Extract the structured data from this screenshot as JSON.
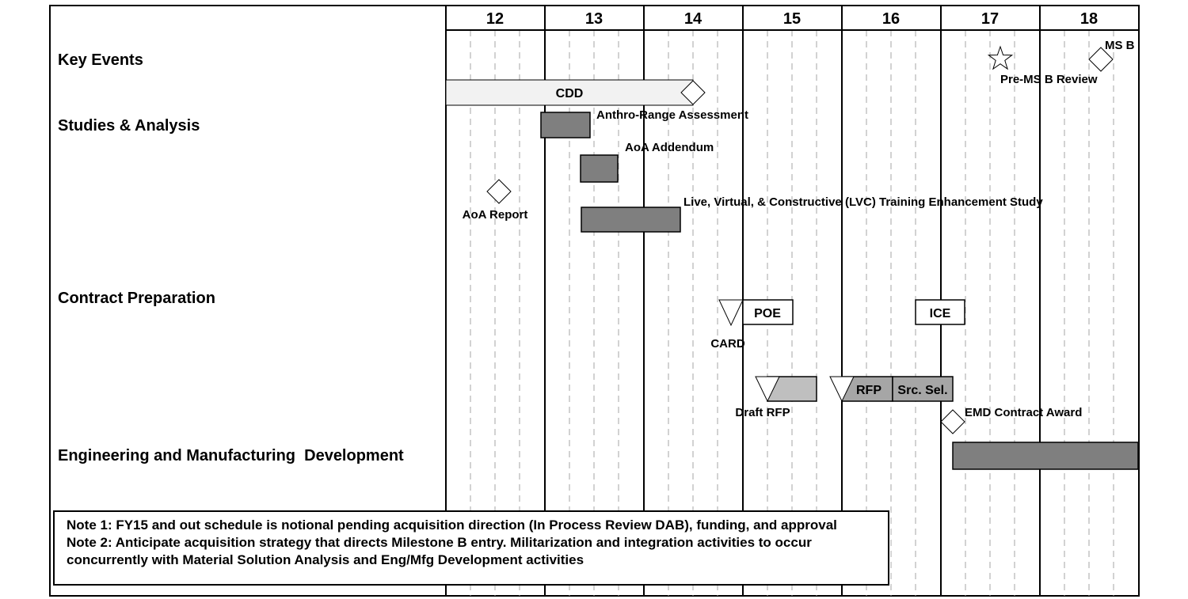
{
  "years": [
    "12",
    "13",
    "14",
    "15",
    "16",
    "17",
    "18"
  ],
  "rows": {
    "key_events": "Key Events",
    "studies": "Studies & Analysis",
    "contract": "Contract Preparation",
    "emd": "Engineering and Manufacturing  Development"
  },
  "events": {
    "cdd": "CDD",
    "anthro": "Anthro-Range Assessment",
    "aoa_addendum": "AoA Addendum",
    "aoa_report": "AoA Report",
    "lvc": "Live, Virtual, & Constructive (LVC) Training Enhancement Study",
    "poe": "POE",
    "card": "CARD",
    "ice": "ICE",
    "draft_rfp": "Draft RFP",
    "rfp": "RFP",
    "src_sel": "Src. Sel.",
    "emd_award": "EMD Contract Award",
    "pre_msb": "Pre-MS B Review",
    "msb": "MS B"
  },
  "notes": {
    "note1": "Note 1: FY15 and out schedule is notional pending acquisition direction (In Process Review DAB), funding, and approval",
    "note2": "Note 2: Anticipate acquisition strategy that directs Milestone B entry. Militarization and integration activities to occur concurrently with Material Solution Analysis and Eng/Mfg Development activities"
  },
  "colors": {
    "dark_bar": "#7f7f7f",
    "light_bar": "#bfbfbf",
    "cdd_bar": "#f2f2f2",
    "rfp_bar": "#a6a6a6"
  }
}
